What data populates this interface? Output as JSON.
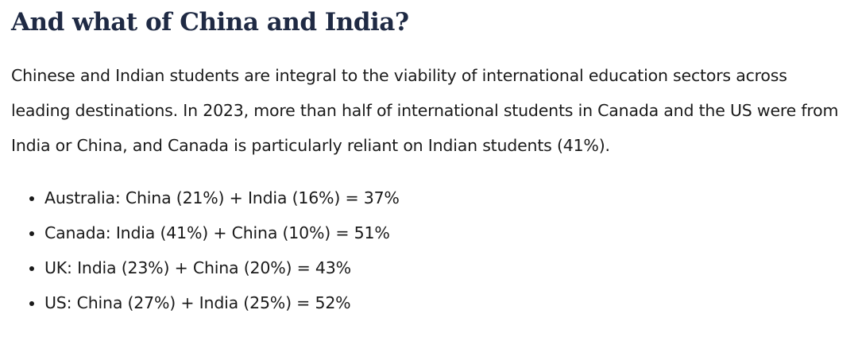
{
  "heading": "And what of China and India?",
  "paragraph": "Chinese and Indian students are integral to the viability of international education sectors across leading destinations. In 2023, more than half of international students in Canada and the US were from India or China, and Canada is particularly reliant on Indian students (41%).",
  "list": [
    "Australia: China (21%) + India (16%) = 37%",
    "Canada: India (41%) + China (10%) = 51%",
    "UK: India (23%) + China (20%) = 43%",
    "US: China (27%) + India (25%) = 52%"
  ]
}
